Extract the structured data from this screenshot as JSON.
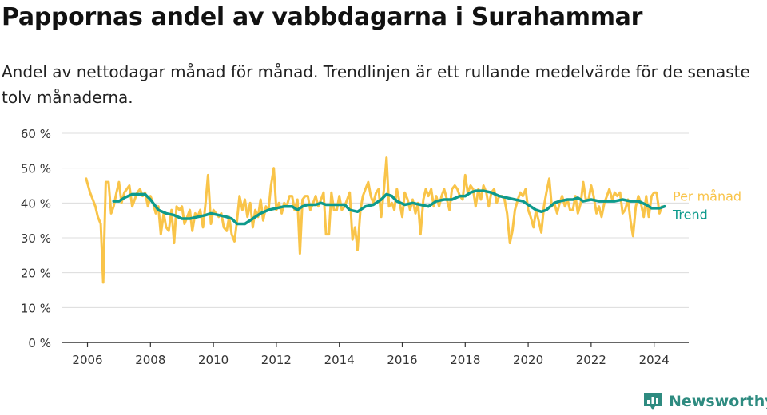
{
  "header": {
    "title": "Pappornas andel av vabbdagarna i Surahammar",
    "subtitle": "Andel av nettodagar månad för månad. Trendlinjen är ett rullande medelvärde för de senaste tolv månaderna."
  },
  "brand": {
    "name": "Newsworthy",
    "icon": "newsworthy-logo-icon",
    "color": "#2e8b80"
  },
  "chart_data": {
    "type": "line",
    "title": "Pappornas andel av vabbdagarna i Surahammar",
    "subtitle": "Andel av nettodagar månad för månad. Trendlinjen är ett rullande medelvärde för de senaste tolv månaderna.",
    "xlabel": "",
    "ylabel": "",
    "xlim": [
      2005.2,
      2025.1
    ],
    "ylim": [
      0,
      60
    ],
    "x_ticks": [
      2006,
      2008,
      2010,
      2012,
      2014,
      2016,
      2018,
      2020,
      2022,
      2024
    ],
    "y_ticks": [
      0,
      10,
      20,
      30,
      40,
      50,
      60
    ],
    "y_tick_labels": [
      "0 %",
      "10 %",
      "20 %",
      "30 %",
      "40 %",
      "50 %",
      "60 %"
    ],
    "grid": true,
    "legend": "direct labels at line ends",
    "series": [
      {
        "name": "Per månad",
        "color": "#f9c449",
        "points": [
          [
            2005.96,
            47
          ],
          [
            2006.08,
            43
          ],
          [
            2006.17,
            41
          ],
          [
            2006.25,
            39
          ],
          [
            2006.33,
            36
          ],
          [
            2006.42,
            34
          ],
          [
            2006.5,
            17.2
          ],
          [
            2006.58,
            46
          ],
          [
            2006.67,
            46
          ],
          [
            2006.75,
            37
          ],
          [
            2006.83,
            39
          ],
          [
            2006.92,
            43
          ],
          [
            2007.0,
            46
          ],
          [
            2007.08,
            40
          ],
          [
            2007.17,
            43
          ],
          [
            2007.25,
            44
          ],
          [
            2007.33,
            45
          ],
          [
            2007.42,
            39
          ],
          [
            2007.5,
            41
          ],
          [
            2007.58,
            43
          ],
          [
            2007.67,
            44
          ],
          [
            2007.75,
            42
          ],
          [
            2007.83,
            43
          ],
          [
            2007.92,
            39
          ],
          [
            2008.0,
            42
          ],
          [
            2008.08,
            40
          ],
          [
            2008.17,
            37
          ],
          [
            2008.25,
            39
          ],
          [
            2008.33,
            31
          ],
          [
            2008.42,
            37
          ],
          [
            2008.5,
            33
          ],
          [
            2008.58,
            32
          ],
          [
            2008.67,
            38
          ],
          [
            2008.75,
            28.5
          ],
          [
            2008.83,
            39
          ],
          [
            2008.92,
            38
          ],
          [
            2009.0,
            39
          ],
          [
            2009.08,
            34
          ],
          [
            2009.17,
            36
          ],
          [
            2009.25,
            38
          ],
          [
            2009.33,
            32
          ],
          [
            2009.42,
            37
          ],
          [
            2009.5,
            36
          ],
          [
            2009.58,
            38
          ],
          [
            2009.67,
            33
          ],
          [
            2009.75,
            40
          ],
          [
            2009.83,
            48
          ],
          [
            2009.92,
            34
          ],
          [
            2010.0,
            38
          ],
          [
            2010.08,
            37
          ],
          [
            2010.17,
            36
          ],
          [
            2010.25,
            37
          ],
          [
            2010.33,
            33
          ],
          [
            2010.42,
            32
          ],
          [
            2010.5,
            36
          ],
          [
            2010.58,
            31
          ],
          [
            2010.67,
            29
          ],
          [
            2010.75,
            35
          ],
          [
            2010.83,
            42
          ],
          [
            2010.92,
            38
          ],
          [
            2011.0,
            41
          ],
          [
            2011.08,
            36
          ],
          [
            2011.17,
            40
          ],
          [
            2011.25,
            33
          ],
          [
            2011.33,
            38
          ],
          [
            2011.42,
            36
          ],
          [
            2011.5,
            41
          ],
          [
            2011.58,
            35
          ],
          [
            2011.67,
            39
          ],
          [
            2011.75,
            38
          ],
          [
            2011.83,
            45
          ],
          [
            2011.92,
            50
          ],
          [
            2012.0,
            38
          ],
          [
            2012.08,
            40
          ],
          [
            2012.17,
            37
          ],
          [
            2012.25,
            40
          ],
          [
            2012.33,
            39
          ],
          [
            2012.42,
            42
          ],
          [
            2012.5,
            42
          ],
          [
            2012.58,
            38
          ],
          [
            2012.67,
            41
          ],
          [
            2012.75,
            25.5
          ],
          [
            2012.83,
            41
          ],
          [
            2012.92,
            42
          ],
          [
            2013.0,
            42
          ],
          [
            2013.08,
            38
          ],
          [
            2013.17,
            40
          ],
          [
            2013.25,
            42
          ],
          [
            2013.33,
            39
          ],
          [
            2013.42,
            41
          ],
          [
            2013.5,
            43
          ],
          [
            2013.58,
            31
          ],
          [
            2013.67,
            31
          ],
          [
            2013.75,
            43
          ],
          [
            2013.83,
            38
          ],
          [
            2013.92,
            38
          ],
          [
            2014.0,
            42
          ],
          [
            2014.08,
            38
          ],
          [
            2014.17,
            39
          ],
          [
            2014.25,
            41
          ],
          [
            2014.33,
            43
          ],
          [
            2014.42,
            29.5
          ],
          [
            2014.5,
            33
          ],
          [
            2014.58,
            26.5
          ],
          [
            2014.67,
            38
          ],
          [
            2014.75,
            42
          ],
          [
            2014.83,
            44
          ],
          [
            2014.92,
            46
          ],
          [
            2015.0,
            42
          ],
          [
            2015.08,
            40
          ],
          [
            2015.17,
            43
          ],
          [
            2015.25,
            44
          ],
          [
            2015.33,
            36
          ],
          [
            2015.42,
            44
          ],
          [
            2015.5,
            53
          ],
          [
            2015.58,
            39
          ],
          [
            2015.67,
            40
          ],
          [
            2015.75,
            38
          ],
          [
            2015.83,
            44
          ],
          [
            2015.92,
            40
          ],
          [
            2016.0,
            36
          ],
          [
            2016.08,
            43
          ],
          [
            2016.17,
            41
          ],
          [
            2016.25,
            38
          ],
          [
            2016.33,
            41
          ],
          [
            2016.42,
            37
          ],
          [
            2016.5,
            40
          ],
          [
            2016.58,
            31
          ],
          [
            2016.67,
            41
          ],
          [
            2016.75,
            44
          ],
          [
            2016.83,
            42
          ],
          [
            2016.92,
            44
          ],
          [
            2017.0,
            39
          ],
          [
            2017.08,
            42
          ],
          [
            2017.17,
            39
          ],
          [
            2017.25,
            42
          ],
          [
            2017.33,
            44
          ],
          [
            2017.42,
            41
          ],
          [
            2017.5,
            38
          ],
          [
            2017.58,
            44
          ],
          [
            2017.67,
            45
          ],
          [
            2017.75,
            44
          ],
          [
            2017.83,
            42
          ],
          [
            2017.92,
            41
          ],
          [
            2018.0,
            48
          ],
          [
            2018.08,
            43
          ],
          [
            2018.17,
            45
          ],
          [
            2018.25,
            44
          ],
          [
            2018.33,
            39
          ],
          [
            2018.42,
            44
          ],
          [
            2018.5,
            41
          ],
          [
            2018.58,
            45
          ],
          [
            2018.67,
            43
          ],
          [
            2018.75,
            39
          ],
          [
            2018.83,
            43
          ],
          [
            2018.92,
            44
          ],
          [
            2019.0,
            40
          ],
          [
            2019.08,
            42
          ],
          [
            2019.17,
            42
          ],
          [
            2019.25,
            41
          ],
          [
            2019.33,
            37
          ],
          [
            2019.42,
            28.5
          ],
          [
            2019.5,
            32
          ],
          [
            2019.58,
            38
          ],
          [
            2019.67,
            41
          ],
          [
            2019.75,
            43
          ],
          [
            2019.83,
            42
          ],
          [
            2019.92,
            44
          ],
          [
            2020.0,
            38
          ],
          [
            2020.08,
            36
          ],
          [
            2020.17,
            33
          ],
          [
            2020.25,
            38
          ],
          [
            2020.33,
            35
          ],
          [
            2020.42,
            31.5
          ],
          [
            2020.5,
            39
          ],
          [
            2020.58,
            43
          ],
          [
            2020.67,
            47
          ],
          [
            2020.75,
            39
          ],
          [
            2020.83,
            40
          ],
          [
            2020.92,
            37
          ],
          [
            2021.0,
            40
          ],
          [
            2021.08,
            42
          ],
          [
            2021.17,
            39
          ],
          [
            2021.25,
            41
          ],
          [
            2021.33,
            38
          ],
          [
            2021.42,
            38
          ],
          [
            2021.5,
            42
          ],
          [
            2021.58,
            37
          ],
          [
            2021.67,
            40
          ],
          [
            2021.75,
            46
          ],
          [
            2021.83,
            41
          ],
          [
            2021.92,
            41
          ],
          [
            2022.0,
            45
          ],
          [
            2022.08,
            42
          ],
          [
            2022.17,
            37
          ],
          [
            2022.25,
            39
          ],
          [
            2022.33,
            36
          ],
          [
            2022.42,
            40
          ],
          [
            2022.5,
            42
          ],
          [
            2022.58,
            44
          ],
          [
            2022.67,
            41
          ],
          [
            2022.75,
            43
          ],
          [
            2022.83,
            42
          ],
          [
            2022.92,
            43
          ],
          [
            2023.0,
            37
          ],
          [
            2023.08,
            38
          ],
          [
            2023.17,
            41
          ],
          [
            2023.25,
            35
          ],
          [
            2023.33,
            30.5
          ],
          [
            2023.42,
            39
          ],
          [
            2023.5,
            42
          ],
          [
            2023.58,
            40
          ],
          [
            2023.67,
            36
          ],
          [
            2023.75,
            42
          ],
          [
            2023.83,
            36
          ],
          [
            2023.92,
            42
          ],
          [
            2024.0,
            43
          ],
          [
            2024.08,
            43
          ],
          [
            2024.17,
            37
          ],
          [
            2024.25,
            39
          ]
        ]
      },
      {
        "name": "Trend",
        "color": "#0e9a8c",
        "points": [
          [
            2006.83,
            40.5
          ],
          [
            2007.0,
            40.5
          ],
          [
            2007.17,
            41.5
          ],
          [
            2007.42,
            42.5
          ],
          [
            2007.67,
            42.5
          ],
          [
            2007.83,
            42.5
          ],
          [
            2008.0,
            41
          ],
          [
            2008.25,
            38
          ],
          [
            2008.5,
            37
          ],
          [
            2008.75,
            36.5
          ],
          [
            2009.0,
            35.5
          ],
          [
            2009.25,
            35.5
          ],
          [
            2009.5,
            36
          ],
          [
            2009.75,
            36.5
          ],
          [
            2009.92,
            37
          ],
          [
            2010.17,
            36.5
          ],
          [
            2010.42,
            36
          ],
          [
            2010.58,
            35.5
          ],
          [
            2010.75,
            34
          ],
          [
            2011.0,
            34
          ],
          [
            2011.25,
            35.5
          ],
          [
            2011.5,
            37
          ],
          [
            2011.75,
            38
          ],
          [
            2012.0,
            38.5
          ],
          [
            2012.25,
            39
          ],
          [
            2012.5,
            39
          ],
          [
            2012.67,
            38
          ],
          [
            2012.83,
            39
          ],
          [
            2013.0,
            39.5
          ],
          [
            2013.25,
            39.5
          ],
          [
            2013.42,
            40
          ],
          [
            2013.58,
            39.5
          ],
          [
            2013.75,
            39.5
          ],
          [
            2014.0,
            39.5
          ],
          [
            2014.17,
            39.5
          ],
          [
            2014.33,
            38
          ],
          [
            2014.58,
            37.5
          ],
          [
            2014.83,
            39
          ],
          [
            2015.08,
            39.5
          ],
          [
            2015.33,
            41
          ],
          [
            2015.5,
            42.5
          ],
          [
            2015.67,
            42
          ],
          [
            2015.83,
            40.5
          ],
          [
            2016.08,
            39.5
          ],
          [
            2016.33,
            40
          ],
          [
            2016.58,
            39.5
          ],
          [
            2016.83,
            39
          ],
          [
            2017.08,
            40.5
          ],
          [
            2017.33,
            41
          ],
          [
            2017.58,
            41
          ],
          [
            2017.83,
            42
          ],
          [
            2018.0,
            42
          ],
          [
            2018.17,
            43
          ],
          [
            2018.33,
            43.5
          ],
          [
            2018.58,
            43.5
          ],
          [
            2018.83,
            43
          ],
          [
            2019.08,
            42
          ],
          [
            2019.33,
            41.5
          ],
          [
            2019.58,
            41
          ],
          [
            2019.83,
            40.5
          ],
          [
            2020.08,
            39
          ],
          [
            2020.25,
            38
          ],
          [
            2020.42,
            37.5
          ],
          [
            2020.58,
            38
          ],
          [
            2020.83,
            40
          ],
          [
            2021.0,
            40.5
          ],
          [
            2021.25,
            41
          ],
          [
            2021.42,
            41
          ],
          [
            2021.58,
            41.5
          ],
          [
            2021.75,
            40.5
          ],
          [
            2022.0,
            41
          ],
          [
            2022.25,
            40.5
          ],
          [
            2022.5,
            40.5
          ],
          [
            2022.75,
            40.5
          ],
          [
            2023.0,
            41
          ],
          [
            2023.25,
            40.5
          ],
          [
            2023.5,
            40.5
          ],
          [
            2023.75,
            39.5
          ],
          [
            2023.92,
            38.5
          ],
          [
            2024.17,
            38.5
          ],
          [
            2024.33,
            39
          ]
        ]
      }
    ]
  }
}
